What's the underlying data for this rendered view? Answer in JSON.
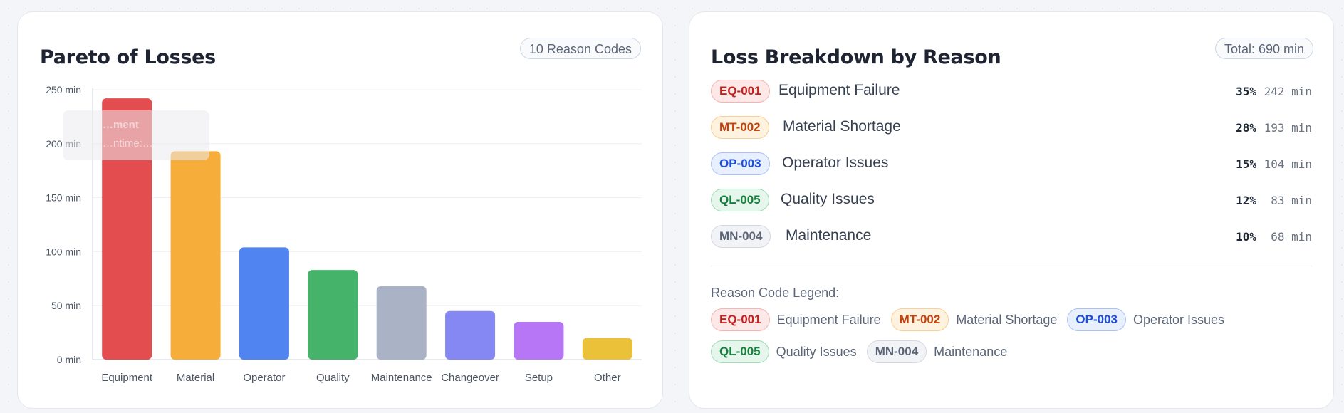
{
  "pareto": {
    "title": "Pareto of Losses",
    "badge": "10 Reason Codes",
    "tooltip": {
      "title": "…ment",
      "value": "…ntime:…"
    }
  },
  "breakdown": {
    "title": "Loss Breakdown by Reason",
    "total": "Total: 690 min",
    "rows": [
      {
        "code": "EQ-001",
        "name": "Equipment Failure",
        "pct": "35%",
        "minutes": "242 min",
        "tone": "red"
      },
      {
        "code": "MT-002",
        "name": "Material Shortage",
        "pct": "28%",
        "minutes": "193 min",
        "tone": "orange"
      },
      {
        "code": "OP-003",
        "name": "Operator Issues",
        "pct": "15%",
        "minutes": "104 min",
        "tone": "blue"
      },
      {
        "code": "QL-005",
        "name": "Quality Issues",
        "pct": "12%",
        "minutes": "83 min",
        "tone": "green"
      },
      {
        "code": "MN-004",
        "name": "Maintenance",
        "pct": "10%",
        "minutes": "68 min",
        "tone": "gray"
      }
    ],
    "legend_title": "Reason Code Legend:",
    "legend": [
      {
        "code": "EQ-001",
        "label": "Equipment Failure"
      },
      {
        "code": "MT-002",
        "label": "Material Shortage"
      },
      {
        "code": "OP-003",
        "label": "Operator Issues"
      },
      {
        "code": "QL-005",
        "label": "Quality Issues"
      },
      {
        "code": "MN-004",
        "label": "Maintenance"
      }
    ]
  },
  "chart_data": {
    "type": "bar",
    "title": "Pareto of Losses",
    "categories": [
      "Equipment",
      "Material",
      "Operator",
      "Quality",
      "Maintenance",
      "Changeover",
      "Setup",
      "Other"
    ],
    "values": [
      242,
      193,
      104,
      83,
      68,
      45,
      35,
      20
    ],
    "colors": [
      "#e34d4f",
      "#f7ad3a",
      "#5085f1",
      "#45b46a",
      "#a9b3c5",
      "#8587f3",
      "#b676f6",
      "#ecc13a"
    ],
    "unit": "min",
    "yticks": [
      "0 min",
      "50 min",
      "100 min",
      "150 min",
      "200 min",
      "250 min"
    ],
    "ylim": [
      0,
      250
    ],
    "grid": true,
    "xlabel": "",
    "ylabel": ""
  }
}
